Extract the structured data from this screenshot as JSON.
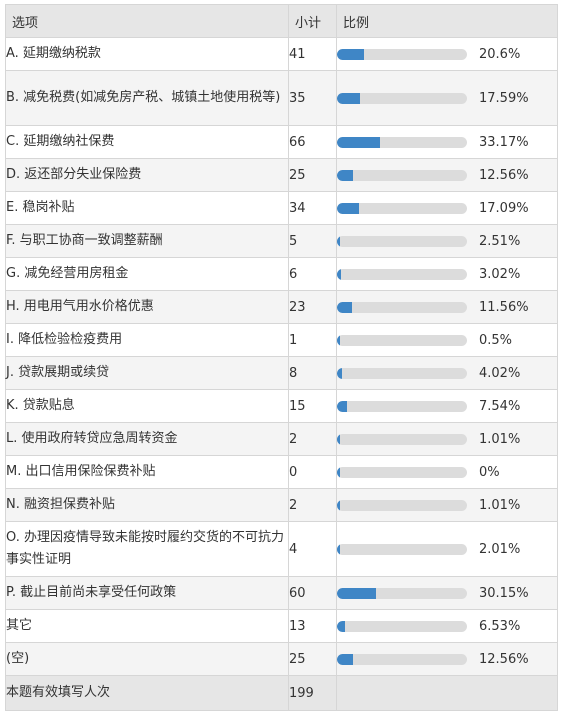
{
  "header": {
    "option": "选项",
    "count": "小计",
    "ratio": "比例"
  },
  "rows": [
    {
      "label": "A.  延期缴纳税款",
      "count": "41",
      "percent": "20.6%",
      "fraction": 0.206
    },
    {
      "label": "B.  减免税费(如减免房产税、城镇土地使用税等)",
      "count": "35",
      "percent": "17.59%",
      "fraction": 0.1759
    },
    {
      "label": "C.  延期缴纳社保费",
      "count": "66",
      "percent": "33.17%",
      "fraction": 0.3317
    },
    {
      "label": "D.  返还部分失业保险费",
      "count": "25",
      "percent": "12.56%",
      "fraction": 0.1256
    },
    {
      "label": "E.  稳岗补贴",
      "count": "34",
      "percent": "17.09%",
      "fraction": 0.1709
    },
    {
      "label": "F.  与职工协商一致调整薪酬",
      "count": "5",
      "percent": "2.51%",
      "fraction": 0.0251
    },
    {
      "label": "G.  减免经营用房租金",
      "count": "6",
      "percent": "3.02%",
      "fraction": 0.0302
    },
    {
      "label": "H.  用电用气用水价格优惠",
      "count": "23",
      "percent": "11.56%",
      "fraction": 0.1156
    },
    {
      "label": "I.  降低检验检疫费用",
      "count": "1",
      "percent": "0.5%",
      "fraction": 0.005
    },
    {
      "label": "J.  贷款展期或续贷",
      "count": "8",
      "percent": "4.02%",
      "fraction": 0.0402
    },
    {
      "label": "K.  贷款贴息",
      "count": "15",
      "percent": "7.54%",
      "fraction": 0.0754
    },
    {
      "label": "L.  使用政府转贷应急周转资金",
      "count": "2",
      "percent": "1.01%",
      "fraction": 0.0101
    },
    {
      "label": "M.  出口信用保险保费补贴",
      "count": "0",
      "percent": "0%",
      "fraction": 0
    },
    {
      "label": "N.  融资担保费补贴",
      "count": "2",
      "percent": "1.01%",
      "fraction": 0.0101
    },
    {
      "label": "O. 办理因疫情导致未能按时履约交货的不可抗力事实性证明",
      "count": "4",
      "percent": "2.01%",
      "fraction": 0.0201
    },
    {
      "label": "P.  截止目前尚未享受任何政策",
      "count": "60",
      "percent": "30.15%",
      "fraction": 0.3015
    },
    {
      "label": "其它",
      "count": "13",
      "percent": "6.53%",
      "fraction": 0.0653
    },
    {
      "label": "(空)",
      "count": "25",
      "percent": "12.56%",
      "fraction": 0.1256
    }
  ],
  "footer": {
    "label": "本题有效填写人次",
    "count": "199"
  },
  "colors": {
    "bar_fill": "#3f86c6",
    "bar_track": "#dcdcdc",
    "header_bg": "#e6e6e6",
    "stripe_bg": "#f4f4f4"
  }
}
